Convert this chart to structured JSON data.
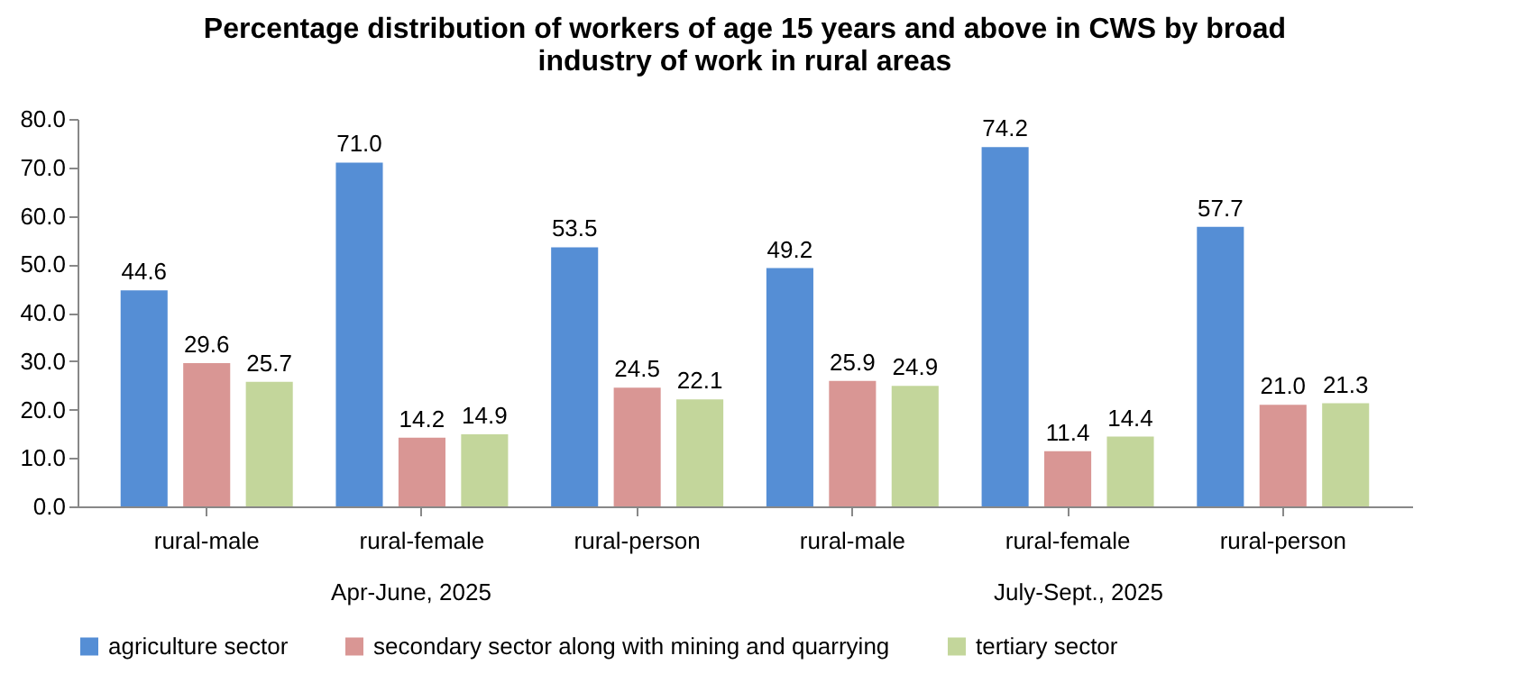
{
  "chart_data": {
    "type": "bar",
    "title": "Percentage distribution of workers of age 15 years and above in CWS by broad industry of work in rural areas",
    "categories": [
      "rural-male",
      "rural-female",
      "rural-person",
      "rural-male",
      "rural-female",
      "rural-person"
    ],
    "annotations": [
      "Apr-June, 2025",
      "July-Sept., 2025"
    ],
    "series": [
      {
        "name": "agriculture sector",
        "color": "#558ed5",
        "values": [
          44.6,
          71.0,
          53.5,
          49.2,
          74.2,
          57.7
        ],
        "value_labels": [
          "44.6",
          "71.0",
          "53.5",
          "49.2",
          "74.2",
          "57.7"
        ]
      },
      {
        "name": "secondary sector along with mining and quarrying",
        "color": "#d99694",
        "values": [
          29.6,
          14.2,
          24.5,
          25.9,
          11.4,
          21.0
        ],
        "value_labels": [
          "29.6",
          "14.2",
          "24.5",
          "25.9",
          "11.4",
          "21.0"
        ]
      },
      {
        "name": "tertiary sector",
        "color": "#c3d69b",
        "values": [
          25.7,
          14.9,
          22.1,
          24.9,
          14.4,
          21.3
        ],
        "value_labels": [
          "25.7",
          "14.9",
          "22.1",
          "24.9",
          "14.4",
          "21.3"
        ]
      }
    ],
    "ylim": [
      0,
      80
    ],
    "yticks": [
      {
        "value": 0,
        "label": "0.0"
      },
      {
        "value": 10,
        "label": "10.0"
      },
      {
        "value": 20,
        "label": "20.0"
      },
      {
        "value": 30,
        "label": "30.0"
      },
      {
        "value": 40,
        "label": "40.0"
      },
      {
        "value": 50,
        "label": "50.0"
      },
      {
        "value": 60,
        "label": "60.0"
      },
      {
        "value": 70,
        "label": "70.0"
      },
      {
        "value": 80,
        "label": "80.0"
      }
    ],
    "grid": false,
    "legend": "bottom"
  }
}
